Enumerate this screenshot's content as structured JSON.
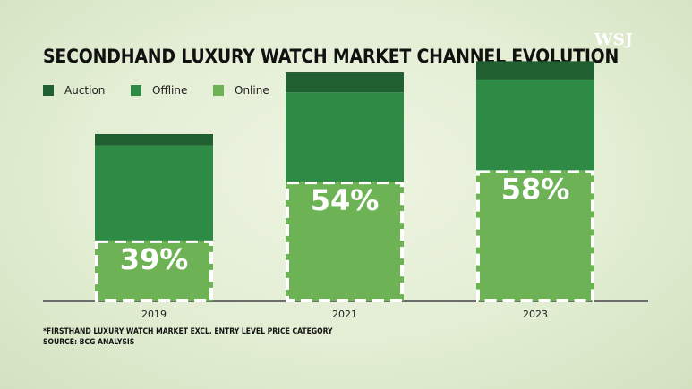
{
  "logo": "WSJ",
  "chart_data": {
    "type": "bar",
    "title": "SECONDHAND LUXURY WATCH MARKET CHANNEL EVOLUTION",
    "categories": [
      "2019",
      "2021",
      "2023"
    ],
    "series": [
      {
        "name": "Online",
        "color": "#6db356",
        "values": [
          8.6,
          16.9,
          18.5
        ],
        "labels": [
          "39%",
          "54%",
          "58%"
        ]
      },
      {
        "name": "Offline",
        "color": "#2e8b45",
        "values": [
          13.4,
          12.6,
          12.8
        ]
      },
      {
        "name": "Auction",
        "color": "#205f30",
        "values": [
          1.6,
          2.8,
          2.6
        ]
      }
    ],
    "ylim": [
      0,
      40
    ],
    "legend": [
      {
        "name": "Auction",
        "color": "#205f30"
      },
      {
        "name": "Offline",
        "color": "#2e8b45"
      },
      {
        "name": "Online",
        "color": "#6db356"
      }
    ]
  },
  "footnote": "*FIRSTHAND LUXURY WATCH MARKET EXCL. ENTRY LEVEL PRICE CATEGORY",
  "source": "SOURCE: BCG ANALYSIS"
}
